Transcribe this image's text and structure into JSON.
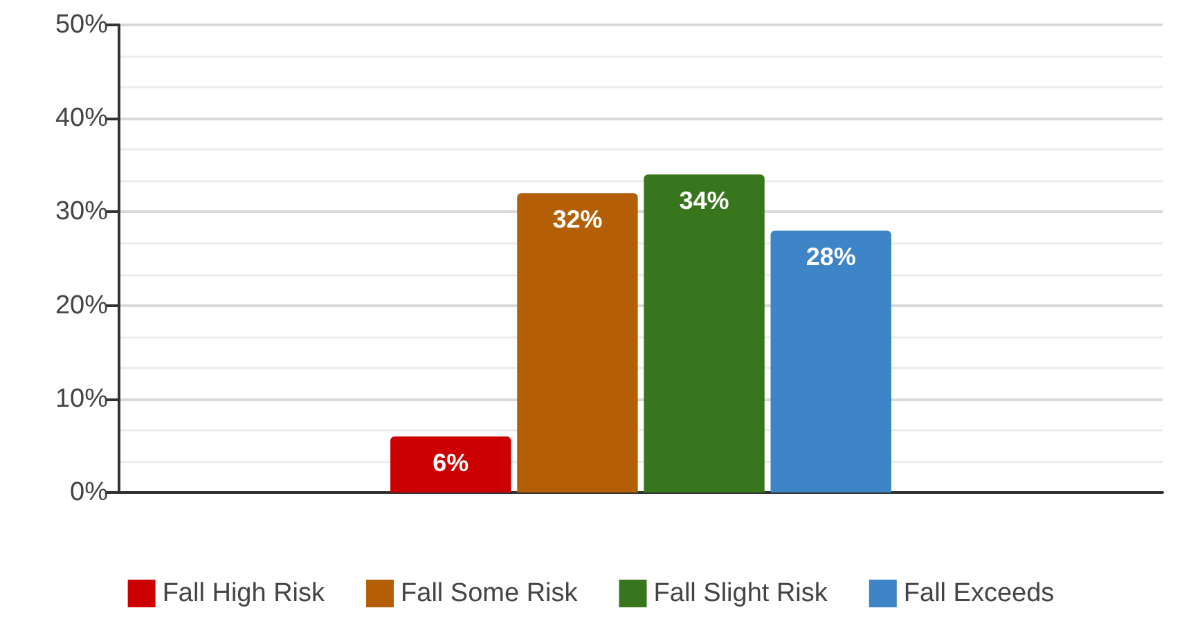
{
  "chart_data": {
    "type": "bar",
    "categories": [
      null
    ],
    "series": [
      {
        "name": "Fall High Risk",
        "color": "#cc0000",
        "values": [
          6
        ],
        "value_labels": [
          "6%"
        ]
      },
      {
        "name": "Fall Some Risk",
        "color": "#b45f06",
        "values": [
          32
        ],
        "value_labels": [
          "32%"
        ]
      },
      {
        "name": "Fall Slight Risk",
        "color": "#38761d",
        "values": [
          34
        ],
        "value_labels": [
          "34%"
        ]
      },
      {
        "name": "Fall Exceeds",
        "color": "#3d85c6",
        "values": [
          28
        ],
        "value_labels": [
          "28%"
        ]
      }
    ],
    "ylim": [
      0,
      50
    ],
    "yticks": [
      {
        "value": 0,
        "label": "0%"
      },
      {
        "value": 10,
        "label": "10%"
      },
      {
        "value": 20,
        "label": "20%"
      },
      {
        "value": 30,
        "label": "30%"
      },
      {
        "value": 40,
        "label": "40%"
      },
      {
        "value": 50,
        "label": "50%"
      }
    ],
    "grid": true,
    "legend": "bottom"
  }
}
